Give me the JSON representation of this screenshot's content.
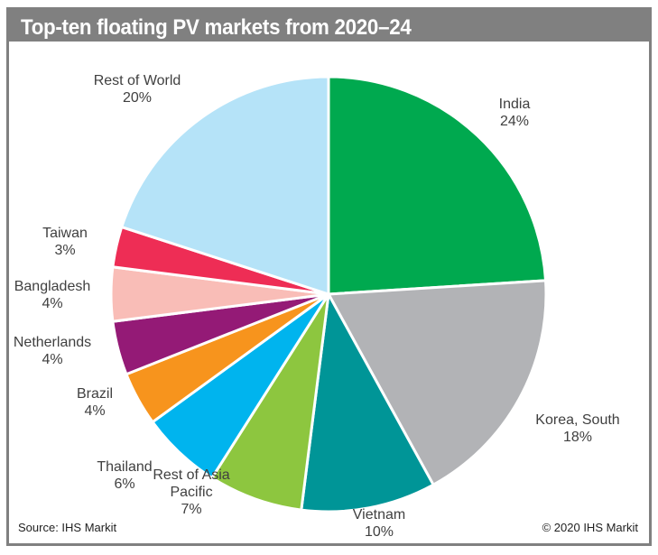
{
  "chart_data": {
    "type": "pie",
    "title": "Top-ten floating PV markets from 2020–24",
    "start": "12 o'clock, clockwise",
    "slices": [
      {
        "name": "India",
        "value": 24,
        "label": "24%",
        "color": "#00A94F"
      },
      {
        "name": "Korea, South",
        "value": 18,
        "label": "18%",
        "color": "#B2B3B6"
      },
      {
        "name": "Vietnam",
        "value": 10,
        "label": "10%",
        "color": "#009597"
      },
      {
        "name": "Rest of Asia Pacific",
        "value": 7,
        "label": "7%",
        "color": "#8DC63F"
      },
      {
        "name": "Thailand",
        "value": 6,
        "label": "6%",
        "color": "#00B4EE"
      },
      {
        "name": "Brazil",
        "value": 4,
        "label": "4%",
        "color": "#F7941D"
      },
      {
        "name": "Netherlands",
        "value": 4,
        "label": "4%",
        "color": "#941A76"
      },
      {
        "name": "Bangladesh",
        "value": 4,
        "label": "4%",
        "color": "#F9BDB7"
      },
      {
        "name": "Taiwan",
        "value": 3,
        "label": "3%",
        "color": "#EE2D55"
      },
      {
        "name": "Rest of World",
        "value": 20,
        "label": "20%",
        "color": "#B5E3F8"
      }
    ],
    "label_lines": [
      [
        "India"
      ],
      [
        "Korea, South"
      ],
      [
        "Vietnam"
      ],
      [
        "Rest of Asia",
        "Pacific"
      ],
      [
        "Thailand"
      ],
      [
        "Brazil"
      ],
      [
        "Netherlands"
      ],
      [
        "Bangladesh"
      ],
      [
        "Taiwan"
      ],
      [
        "Rest of World"
      ]
    ]
  },
  "footer": {
    "source": "Source: IHS Markit",
    "copyright": "© 2020 IHS Markit"
  }
}
